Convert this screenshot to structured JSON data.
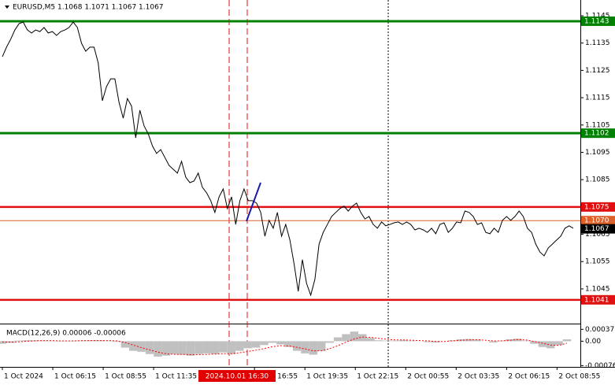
{
  "chart_data": [
    {
      "type": "line",
      "title": "EURUSD,M5 1.1068 1.1071 1.1067 1.1067",
      "color": "#000000",
      "values": [
        1.113,
        1.11335,
        1.11364,
        1.11398,
        1.11421,
        1.11427,
        1.11398,
        1.11387,
        1.11398,
        1.11392,
        1.11407,
        1.11387,
        1.11392,
        1.11378,
        1.11392,
        1.11398,
        1.11407,
        1.11427,
        1.11407,
        1.11349,
        1.1132,
        1.11335,
        1.11335,
        1.11277,
        1.11139,
        1.11191,
        1.11219,
        1.11219,
        1.11133,
        1.11075,
        1.11147,
        1.11119,
        1.11003,
        1.11104,
        1.11047,
        1.11018,
        1.10974,
        1.10946,
        1.1096,
        1.10931,
        1.10902,
        1.10888,
        1.10874,
        1.10917,
        1.10859,
        1.10839,
        1.10845,
        1.10874,
        1.10822,
        1.10802,
        1.10773,
        1.1073,
        1.10787,
        1.10816,
        1.10744,
        1.10787,
        1.10686,
        1.10773,
        1.10816,
        1.10773,
        1.10773,
        1.10764,
        1.1073,
        1.10643,
        1.10701,
        1.10672,
        1.1073,
        1.10643,
        1.10686,
        1.10629,
        1.10542,
        1.10441,
        1.10557,
        1.1047,
        1.10427,
        1.10485,
        1.10614,
        1.10657,
        1.10686,
        1.10715,
        1.1073,
        1.10744,
        1.10753,
        1.10735,
        1.10753,
        1.10764,
        1.1073,
        1.10706,
        1.10715,
        1.10686,
        1.10672,
        1.10695,
        1.10681,
        1.10686,
        1.10692,
        1.10695,
        1.10686,
        1.10695,
        1.10686,
        1.10666,
        1.10672,
        1.10666,
        1.10657,
        1.10672,
        1.10652,
        1.10686,
        1.10692,
        1.10657,
        1.10672,
        1.10695,
        1.10692,
        1.10735,
        1.1073,
        1.10715,
        1.10686,
        1.10692,
        1.10657,
        1.10652,
        1.10672,
        1.10657,
        1.10701,
        1.10715,
        1.10701,
        1.10715,
        1.10735,
        1.10715,
        1.10672,
        1.10657,
        1.10614,
        1.10585,
        1.10571,
        1.106,
        1.10614,
        1.10629,
        1.10643,
        1.10672,
        1.10681,
        1.10672
      ],
      "xlim": [
        0,
        137
      ],
      "xticks": [
        {
          "value": 0,
          "label": "1 Oct 2024"
        },
        {
          "value": 12.1,
          "label": "1 Oct 06:15"
        },
        {
          "value": 24.2,
          "label": "1 Oct 08:55"
        },
        {
          "value": 36.3,
          "label": "1 Oct 11:35"
        },
        {
          "value": 60.5,
          "label": "1 Oct 16:55"
        },
        {
          "value": 72.6,
          "label": "1 Oct 19:35"
        },
        {
          "value": 84.7,
          "label": "1 Oct 22:15"
        },
        {
          "value": 96.8,
          "label": "2 Oct 00:55"
        },
        {
          "value": 108.9,
          "label": "2 Oct 03:35"
        },
        {
          "value": 121,
          "label": "2 Oct 06:15"
        },
        {
          "value": 133.1,
          "label": "2 Oct 08:55"
        }
      ],
      "ylim": [
        1.10323,
        1.11499
      ],
      "yticks": [
        1.1145,
        1.1135,
        1.1125,
        1.1115,
        1.1105,
        1.1095,
        1.1085,
        1.1065,
        1.1055,
        1.1045
      ],
      "levels": [
        {
          "value": 1.1143,
          "color": "#008000"
        },
        {
          "value": 1.1102,
          "color": "#008000"
        },
        {
          "value": 1.1075,
          "color": "#e01010"
        },
        {
          "value": 1.107,
          "label": "1.1070",
          "color": "#e0602a"
        },
        {
          "value": 1.1041,
          "color": "#e01010"
        }
      ],
      "last_price": 1.1067,
      "cursor_label": "2024.10.01 16:30"
    },
    {
      "type": "bar",
      "title": "MACD(12,26,9) 0.00006 -0.00006",
      "color": "#c0c0c0",
      "values": [
        -8e-05,
        -5e-05,
        2e-05,
        3e-05,
        3e-05,
        2e-05,
        1e-05,
        1e-05,
        1e-05,
        2e-05,
        2e-05,
        3e-05,
        3e-05,
        1e-05,
        -2e-05,
        -0.0002,
        -0.0003,
        -0.00033,
        -0.0004,
        -0.00048,
        -0.00045,
        -0.0004,
        -0.00042,
        -0.00045,
        -0.0004,
        -0.00038,
        -0.0004,
        -0.00035,
        -0.0004,
        -0.0003,
        -0.00022,
        -0.0002,
        -0.00012,
        -5e-05,
        -0.0001,
        -0.00018,
        -0.0003,
        -0.00038,
        -0.00042,
        -0.0003,
        -5e-05,
        0.00012,
        0.00022,
        0.0003,
        0.00022,
        0.0001,
        3e-05,
        2e-05,
        2e-05,
        4e-05,
        2e-05,
        0,
        -3e-05,
        -4e-05,
        0,
        3e-05,
        6e-05,
        7e-05,
        5e-05,
        0,
        -4e-05,
        2e-05,
        6e-05,
        8e-05,
        2e-05,
        -8e-05,
        -0.00018,
        -0.00022,
        -0.00012,
        6e-05
      ],
      "signal": {
        "color": "#ff0000",
        "values": [
          -2e-05,
          -3e-05,
          -2e-05,
          0,
          1e-05,
          2e-05,
          2e-05,
          1e-05,
          1e-05,
          1e-05,
          2e-05,
          2e-05,
          2e-05,
          2e-05,
          1e-05,
          -4e-05,
          -0.00012,
          -0.0002,
          -0.00027,
          -0.00034,
          -0.00039,
          -0.00041,
          -0.00041,
          -0.00042,
          -0.00042,
          -0.00041,
          -0.0004,
          -0.00039,
          -0.00039,
          -0.00036,
          -0.00032,
          -0.00028,
          -0.00023,
          -0.00017,
          -0.00014,
          -0.00015,
          -0.00019,
          -0.00024,
          -0.0003,
          -0.0003,
          -0.00023,
          -0.00014,
          -3e-05,
          7e-05,
          0.00013,
          0.00012,
          9e-05,
          6e-05,
          4e-05,
          4e-05,
          3e-05,
          2e-05,
          1e-05,
          -1e-05,
          -1e-05,
          1e-05,
          3e-05,
          4e-05,
          5e-05,
          3e-05,
          1e-05,
          1e-05,
          3e-05,
          5e-05,
          4e-05,
          -1e-05,
          -6e-05,
          -0.00012,
          -0.00013,
          -6e-05
        ]
      },
      "xlim": [
        0,
        69
      ],
      "ylim": [
        -0.0008,
        0.0005
      ],
      "yticks": [
        0.00037,
        {
          "value": 0,
          "label": "0.00"
        },
        -0.00076
      ]
    }
  ]
}
